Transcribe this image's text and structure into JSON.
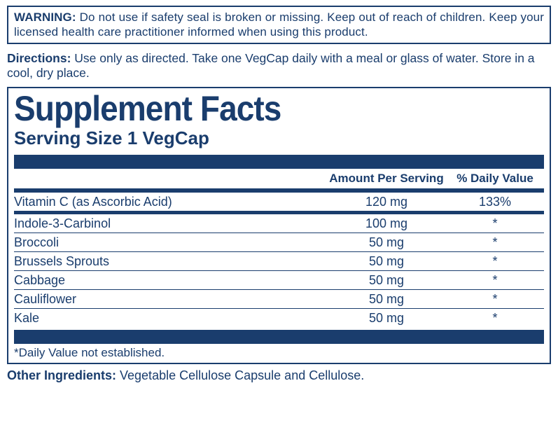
{
  "colors": {
    "ink": "#1a3d6d",
    "bg": "#ffffff"
  },
  "warning": {
    "label": "WARNING:",
    "text": " Do not use if safety seal is broken or missing. Keep out of reach of children. Keep your licensed health care practitioner informed when using this product."
  },
  "directions": {
    "label": "Directions:",
    "text": " Use only as directed. Take one VegCap daily with a meal or glass of water. Store in a cool, dry place."
  },
  "facts": {
    "title": "Supplement Facts",
    "serving": "Serving Size 1 VegCap",
    "columns": {
      "amount": "Amount Per Serving",
      "dv": "% Daily Value"
    },
    "rows": [
      {
        "name": "Vitamin C (as Ascorbic Acid)",
        "amount": "120 mg",
        "dv": "133%"
      },
      {
        "name": "Indole-3-Carbinol",
        "amount": "100 mg",
        "dv": "*"
      },
      {
        "name": "Broccoli",
        "amount": "50 mg",
        "dv": "*"
      },
      {
        "name": "Brussels Sprouts",
        "amount": "50 mg",
        "dv": "*"
      },
      {
        "name": "Cabbage",
        "amount": "50 mg",
        "dv": "*"
      },
      {
        "name": "Cauliflower",
        "amount": "50 mg",
        "dv": "*"
      },
      {
        "name": "Kale",
        "amount": "50 mg",
        "dv": "*"
      }
    ],
    "footnote": "*Daily Value not established."
  },
  "other": {
    "label": "Other Ingredients:",
    "text": " Vegetable Cellulose Capsule and Cellulose."
  }
}
